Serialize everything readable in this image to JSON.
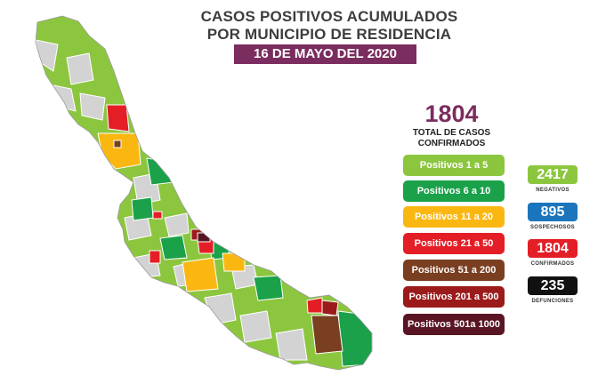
{
  "title": {
    "line1": "CASOS POSITIVOS ACUMULADOS",
    "line2": "POR MUNICIPIO DE RESIDENCIA"
  },
  "date": "16 DE MAYO DEL 2020",
  "total": {
    "value": "1804",
    "label1": "TOTAL DE CASOS",
    "label2": "CONFIRMADOS"
  },
  "legend": [
    {
      "label": "Positivos 1 a 5",
      "color": "#8cc63f"
    },
    {
      "label": "Positivos 6 a 10",
      "color": "#1aa14a"
    },
    {
      "label": "Positivos 11 a 20",
      "color": "#fbb711"
    },
    {
      "label": "Positivos 21 a 50",
      "color": "#e41e26"
    },
    {
      "label": "Positivos 51 a 200",
      "color": "#7a3f20"
    },
    {
      "label": "Positivos 201 a 500",
      "color": "#9b1b1b"
    },
    {
      "label": "Positivos 501a 1000",
      "color": "#5a1524"
    }
  ],
  "stats": [
    {
      "value": "2417",
      "label": "NEGATIVOS",
      "color": "#8cc63f"
    },
    {
      "value": "895",
      "label": "SOSPECHOSOS",
      "color": "#1b75bc"
    },
    {
      "value": "1804",
      "label": "CONFIRMADOS",
      "color": "#e41e26"
    },
    {
      "value": "235",
      "label": "DEFUNCIONES",
      "color": "#111111"
    }
  ],
  "colors": {
    "title_text": "#3d3d3d",
    "date_banner": "#7b2d5f",
    "total_value": "#7b2d5f",
    "no_cases": "#d3d3d3"
  }
}
